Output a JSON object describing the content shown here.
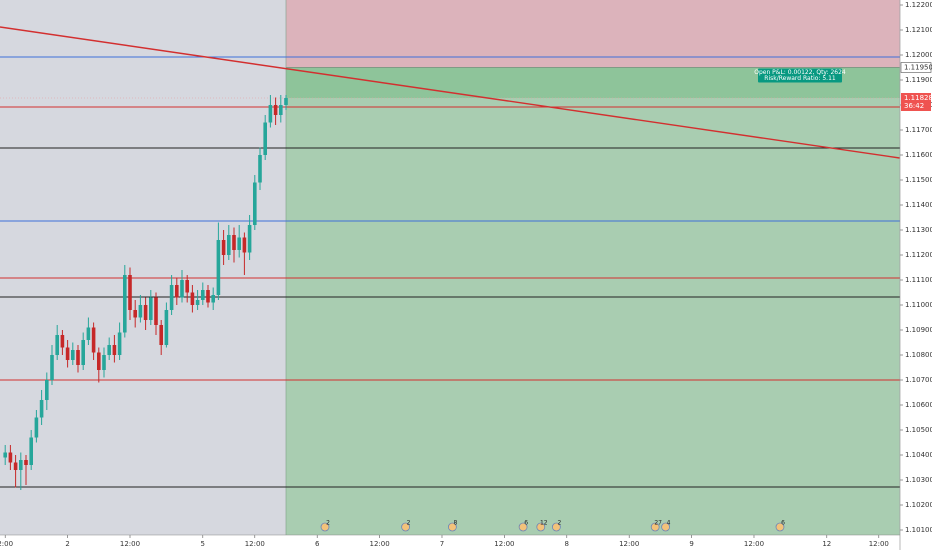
{
  "chart_data": {
    "type": "candlestick",
    "ylim": [
      1.1008,
      1.1222
    ],
    "xlim": [
      -1,
      172.08
    ],
    "yticks": [
      {
        "value": 1.122,
        "label": "1.12200"
      },
      {
        "value": 1.121,
        "label": "1.12100"
      },
      {
        "value": 1.12,
        "label": "1.12000"
      },
      {
        "value": 1.119,
        "label": "1.11900"
      },
      {
        "value": 1.118,
        "label": "1.11800"
      },
      {
        "value": 1.117,
        "label": "1.11700"
      },
      {
        "value": 1.116,
        "label": "1.11600"
      },
      {
        "value": 1.115,
        "label": "1.11500"
      },
      {
        "value": 1.114,
        "label": "1.11400"
      },
      {
        "value": 1.113,
        "label": "1.11300"
      },
      {
        "value": 1.112,
        "label": "1.11200"
      },
      {
        "value": 1.111,
        "label": "1.11100"
      },
      {
        "value": 1.11,
        "label": "1.11000"
      },
      {
        "value": 1.109,
        "label": "1.10900"
      },
      {
        "value": 1.108,
        "label": "1.10800"
      },
      {
        "value": 1.107,
        "label": "1.10700"
      },
      {
        "value": 1.106,
        "label": "1.10600"
      },
      {
        "value": 1.105,
        "label": "1.10500"
      },
      {
        "value": 1.104,
        "label": "1.10400"
      },
      {
        "value": 1.103,
        "label": "1.10300"
      },
      {
        "value": 1.102,
        "label": "1.10200"
      },
      {
        "value": 1.101,
        "label": "1.10100"
      }
    ],
    "xticks": [
      {
        "value": 0,
        "label": "2:00"
      },
      {
        "value": 12,
        "label": "2"
      },
      {
        "value": 24,
        "label": "12:00"
      },
      {
        "value": 38,
        "label": "5"
      },
      {
        "value": 48,
        "label": "12:00"
      },
      {
        "value": 60,
        "label": "6"
      },
      {
        "value": 72,
        "label": "12:00"
      },
      {
        "value": 84,
        "label": "7"
      },
      {
        "value": 96,
        "label": "12:00"
      },
      {
        "value": 108,
        "label": "8"
      },
      {
        "value": 120,
        "label": "12:00"
      },
      {
        "value": 132,
        "label": "9"
      },
      {
        "value": 144,
        "label": "12:00"
      },
      {
        "value": 158,
        "label": "12"
      },
      {
        "value": 168,
        "label": "12:00"
      }
    ],
    "up_color": "#26a69a",
    "down_color": "#c62828",
    "candles": [
      [
        1.1039,
        1.1044,
        1.1036,
        1.1041
      ],
      [
        1.1041,
        1.1044,
        1.1034,
        1.1037
      ],
      [
        1.1037,
        1.104,
        1.1027,
        1.1034
      ],
      [
        1.1034,
        1.1041,
        1.1026,
        1.1038
      ],
      [
        1.1038,
        1.104,
        1.1028,
        1.1036
      ],
      [
        1.1036,
        1.105,
        1.1034,
        1.1047
      ],
      [
        1.1047,
        1.1058,
        1.1045,
        1.1055
      ],
      [
        1.1055,
        1.1066,
        1.1052,
        1.1062
      ],
      [
        1.1062,
        1.1073,
        1.1058,
        1.107
      ],
      [
        1.107,
        1.1084,
        1.1068,
        1.108
      ],
      [
        1.108,
        1.1092,
        1.1078,
        1.1088
      ],
      [
        1.1088,
        1.109,
        1.108,
        1.1083
      ],
      [
        1.1083,
        1.1086,
        1.1075,
        1.1078
      ],
      [
        1.1078,
        1.1085,
        1.1076,
        1.1082
      ],
      [
        1.1082,
        1.1084,
        1.1073,
        1.1076
      ],
      [
        1.1076,
        1.1089,
        1.1074,
        1.1086
      ],
      [
        1.1086,
        1.1095,
        1.1084,
        1.1091
      ],
      [
        1.1091,
        1.1093,
        1.1078,
        1.1081
      ],
      [
        1.1081,
        1.1083,
        1.1069,
        1.1074
      ],
      [
        1.1074,
        1.1083,
        1.1071,
        1.108
      ],
      [
        1.108,
        1.1087,
        1.1078,
        1.1084
      ],
      [
        1.1084,
        1.1088,
        1.1077,
        1.108
      ],
      [
        1.108,
        1.1093,
        1.1078,
        1.1089
      ],
      [
        1.1089,
        1.1116,
        1.1087,
        1.1112
      ],
      [
        1.1112,
        1.1115,
        1.1094,
        1.1098
      ],
      [
        1.1098,
        1.1102,
        1.1091,
        1.1095
      ],
      [
        1.1095,
        1.1104,
        1.1093,
        1.11
      ],
      [
        1.11,
        1.1103,
        1.109,
        1.1094
      ],
      [
        1.1094,
        1.1106,
        1.1092,
        1.1103
      ],
      [
        1.1103,
        1.1105,
        1.1088,
        1.1092
      ],
      [
        1.1092,
        1.1094,
        1.108,
        1.1084
      ],
      [
        1.1084,
        1.1101,
        1.1083,
        1.1098
      ],
      [
        1.1098,
        1.1112,
        1.1096,
        1.1108
      ],
      [
        1.1108,
        1.1111,
        1.11,
        1.1103
      ],
      [
        1.1103,
        1.1114,
        1.1101,
        1.111
      ],
      [
        1.111,
        1.1112,
        1.1101,
        1.1105
      ],
      [
        1.1105,
        1.1108,
        1.1097,
        1.11
      ],
      [
        1.11,
        1.1106,
        1.1098,
        1.1102
      ],
      [
        1.1102,
        1.1109,
        1.11,
        1.1106
      ],
      [
        1.1106,
        1.1108,
        1.1099,
        1.1101
      ],
      [
        1.1101,
        1.1107,
        1.1098,
        1.1104
      ],
      [
        1.1104,
        1.1133,
        1.1102,
        1.1126
      ],
      [
        1.1126,
        1.113,
        1.1116,
        1.112
      ],
      [
        1.112,
        1.1132,
        1.1118,
        1.1128
      ],
      [
        1.1128,
        1.1131,
        1.1117,
        1.1122
      ],
      [
        1.1122,
        1.1132,
        1.1119,
        1.1127
      ],
      [
        1.1127,
        1.1129,
        1.1112,
        1.1121
      ],
      [
        1.1121,
        1.1136,
        1.1118,
        1.1132
      ],
      [
        1.1132,
        1.1152,
        1.113,
        1.1149
      ],
      [
        1.1149,
        1.1163,
        1.1146,
        1.116
      ],
      [
        1.116,
        1.1176,
        1.1158,
        1.1173
      ],
      [
        1.1173,
        1.1184,
        1.1171,
        1.118
      ],
      [
        1.118,
        1.1183,
        1.1172,
        1.1176
      ],
      [
        1.1176,
        1.1184,
        1.1173,
        1.118
      ],
      [
        1.118,
        1.1184,
        1.1178,
        1.11828
      ]
    ],
    "levels": [
      {
        "price": 1.11992,
        "color": "#3f6fd8"
      },
      {
        "price": 1.11792,
        "color": "#d32f2f"
      },
      {
        "price": 1.11628,
        "color": "#222222"
      },
      {
        "price": 1.11336,
        "color": "#3f6fd8"
      },
      {
        "price": 1.11108,
        "color": "#d32f2f"
      },
      {
        "price": 1.11032,
        "color": "#222222"
      },
      {
        "price": 1.107,
        "color": "#d32f2f"
      },
      {
        "price": 1.10272,
        "color": "#222222"
      }
    ],
    "trendline": {
      "x": [
        -1,
        172
      ],
      "y": [
        1.12112,
        1.11588
      ],
      "color": "#d32f2f"
    },
    "position": {
      "start": 54,
      "end": 172,
      "entry": 1.1195,
      "stop": 1.12316,
      "target": 1.1008,
      "entry_label": "1.11950",
      "text": [
        "Open P&L: 0.00122, Qty: 2624",
        "Risk/Reward Ratio: 5.11"
      ]
    },
    "last_price": 1.11828,
    "last_price_label": "1.11828",
    "countdown": "36:42",
    "events": [
      {
        "x": 61.5,
        "label": "2"
      },
      {
        "x": 77,
        "label": "2"
      },
      {
        "x": 86,
        "label": "8"
      },
      {
        "x": 99.6,
        "label": "6"
      },
      {
        "x": 103,
        "label": "12"
      },
      {
        "x": 106,
        "label": "2"
      },
      {
        "x": 125,
        "label": "27"
      },
      {
        "x": 127,
        "label": "4"
      },
      {
        "x": 149,
        "label": "6"
      }
    ]
  }
}
